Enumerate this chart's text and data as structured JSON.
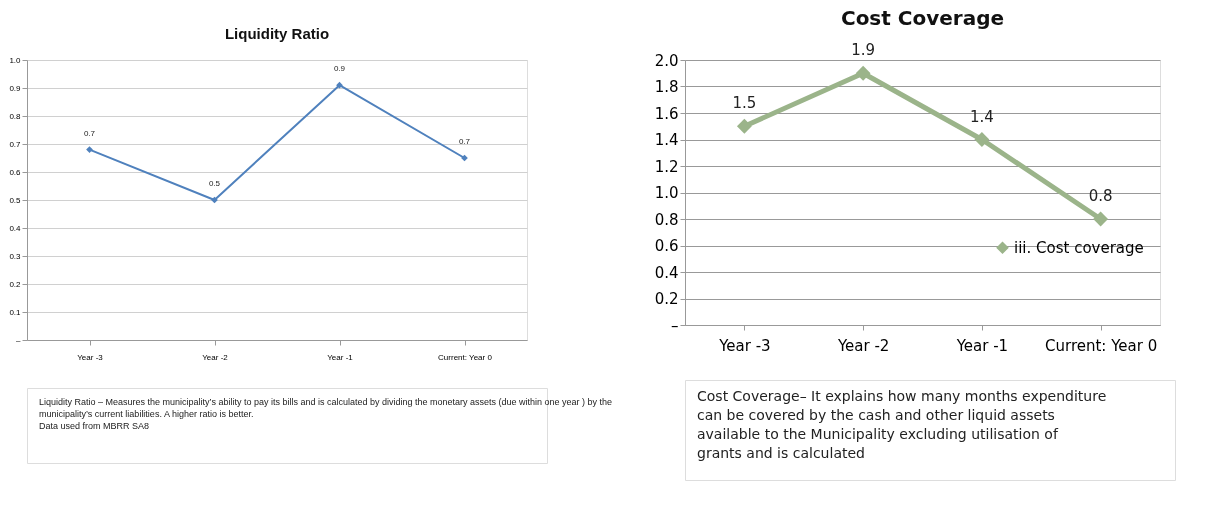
{
  "chart_data": [
    {
      "type": "line",
      "title": "Liquidity Ratio",
      "categories": [
        "Year -3",
        "Year -2",
        "Year -1",
        "Current: Year 0"
      ],
      "values": [
        0.68,
        0.5,
        0.91,
        0.65
      ],
      "value_labels": [
        "0.7",
        "0.5",
        "0.9",
        "0.7"
      ],
      "color": "#4f81bd",
      "ylim": [
        0,
        1
      ],
      "yticks": [
        {
          "value": 0,
          "label": "–"
        },
        0.1,
        0.2,
        0.3,
        0.4,
        0.5,
        0.6,
        0.7,
        0.8,
        0.9,
        {
          "value": 1,
          "label": "1.0"
        }
      ],
      "grid": "y",
      "marker": "diamond",
      "legend": false,
      "annotations": [
        "Liquidity Ratio – Measures the municipality’s ability to pay its bills and is calculated by dividing the monetary assets (due within one year ) by the municipality’s current liabilities. A higher ratio is better.",
        "Data used from  MBRR SA8"
      ]
    },
    {
      "type": "line",
      "title": "Cost Coverage",
      "categories": [
        "Year -3",
        "Year -2",
        "Year -1",
        "Current: Year 0"
      ],
      "series": [
        {
          "name": "iii. Cost coverage",
          "color": "#9bb48a",
          "values": [
            1.5,
            1.9,
            1.4,
            0.8
          ]
        }
      ],
      "data_labels": true,
      "ylim": [
        0,
        2
      ],
      "yticks": [
        {
          "value": 0,
          "label": "–"
        },
        0.2,
        0.4,
        0.6,
        0.8,
        {
          "value": 1,
          "label": "1.0"
        },
        1.2,
        1.4,
        1.6,
        1.8,
        {
          "value": 2,
          "label": "2.0"
        }
      ],
      "grid": "y",
      "marker": "diamond",
      "legend": "right",
      "annotations": [
        "Cost Coverage– It explains how many months expenditure can be covered by the  cash and other liquid assets available to the Municipality excluding utilisation of grants and is calculated"
      ]
    }
  ]
}
